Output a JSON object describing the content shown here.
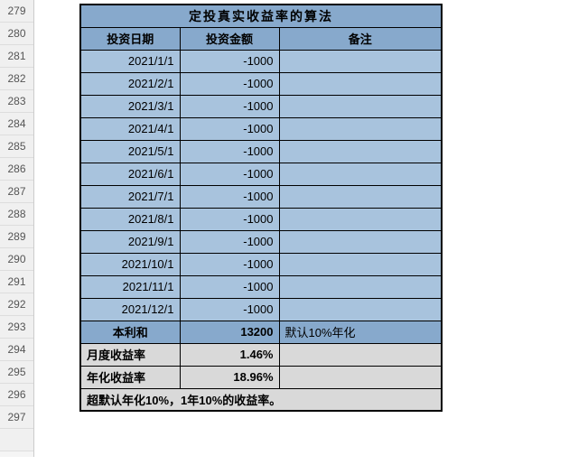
{
  "colors": {
    "header_bg": "#87a9cc",
    "data_bg": "#a8c3dd",
    "summary_bg": "#d9d9d9",
    "border": "#000000",
    "rowhead_bg": "#f0f0f0"
  },
  "row_numbers": [
    "279",
    "280",
    "281",
    "282",
    "283",
    "284",
    "285",
    "286",
    "287",
    "288",
    "289",
    "290",
    "291",
    "292",
    "293",
    "294",
    "295",
    "296",
    "297",
    ""
  ],
  "table": {
    "title": "定投真实收益率的算法",
    "columns": [
      "投资日期",
      "投资金额",
      "备注"
    ],
    "rows": [
      {
        "date": "2021/1/1",
        "amount": "-1000",
        "note": ""
      },
      {
        "date": "2021/2/1",
        "amount": "-1000",
        "note": ""
      },
      {
        "date": "2021/3/1",
        "amount": "-1000",
        "note": ""
      },
      {
        "date": "2021/4/1",
        "amount": "-1000",
        "note": ""
      },
      {
        "date": "2021/5/1",
        "amount": "-1000",
        "note": ""
      },
      {
        "date": "2021/6/1",
        "amount": "-1000",
        "note": ""
      },
      {
        "date": "2021/7/1",
        "amount": "-1000",
        "note": ""
      },
      {
        "date": "2021/8/1",
        "amount": "-1000",
        "note": ""
      },
      {
        "date": "2021/9/1",
        "amount": "-1000",
        "note": ""
      },
      {
        "date": "2021/10/1",
        "amount": "-1000",
        "note": ""
      },
      {
        "date": "2021/11/1",
        "amount": "-1000",
        "note": ""
      },
      {
        "date": "2021/12/1",
        "amount": "-1000",
        "note": ""
      }
    ],
    "sum": {
      "label": "本利和",
      "value": "13200",
      "note": "默认10%年化"
    },
    "monthly": {
      "label": "月度收益率",
      "value": "1.46%",
      "note": ""
    },
    "annual": {
      "label": "年化收益率",
      "value": "18.96%",
      "note": ""
    },
    "footer": "超默认年化10%，1年10%的收益率。"
  }
}
